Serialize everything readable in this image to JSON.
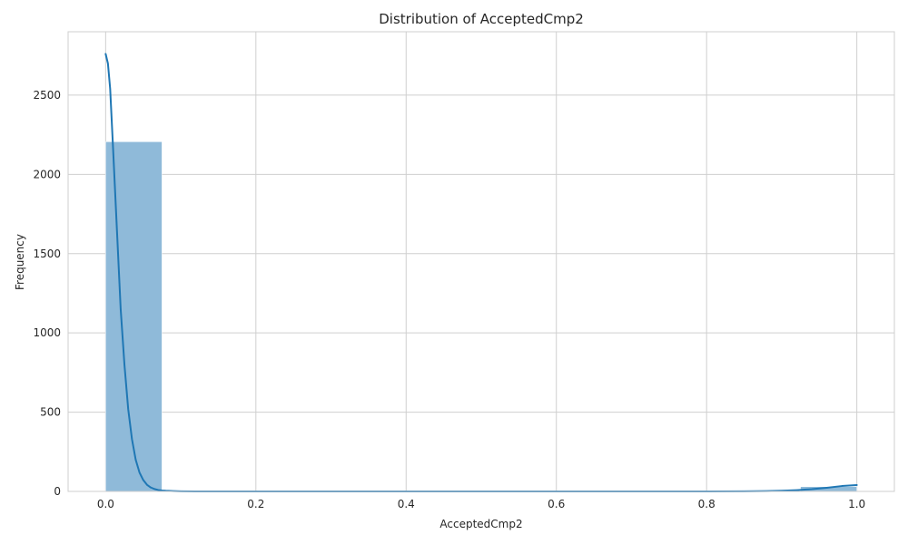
{
  "chart_data": {
    "type": "bar",
    "title": "Distribution of AcceptedCmp2",
    "xlabel": "AcceptedCmp2",
    "ylabel": "Frequency",
    "xlim": [
      -0.05,
      1.05
    ],
    "ylim": [
      0,
      2900
    ],
    "x_ticks": [
      0.0,
      0.2,
      0.4,
      0.6,
      0.8,
      1.0
    ],
    "x_tick_labels": [
      "0.0",
      "0.2",
      "0.4",
      "0.6",
      "0.8",
      "1.0"
    ],
    "y_ticks": [
      0,
      500,
      1000,
      1500,
      2000,
      2500
    ],
    "y_tick_labels": [
      "0",
      "500",
      "1000",
      "1500",
      "2000",
      "2500"
    ],
    "grid": true,
    "bar_color": "#8fbad9",
    "bar_edge_color": "#ffffff",
    "line_color": "#1f77b4",
    "bins": [
      {
        "x0": 0.0,
        "x1": 0.075,
        "count": 2206
      },
      {
        "x0": 0.925,
        "x1": 1.0,
        "count": 30
      }
    ],
    "kde": {
      "x": [
        0.0,
        0.003,
        0.006,
        0.01,
        0.015,
        0.02,
        0.025,
        0.03,
        0.035,
        0.04,
        0.045,
        0.05,
        0.055,
        0.06,
        0.065,
        0.07,
        0.075,
        0.08,
        0.09,
        0.1,
        0.12,
        0.15,
        0.2,
        0.3,
        0.4,
        0.5,
        0.6,
        0.7,
        0.8,
        0.85,
        0.88,
        0.9,
        0.92,
        0.94,
        0.96,
        0.98,
        1.0
      ],
      "y": [
        2760,
        2700,
        2540,
        2150,
        1650,
        1150,
        800,
        520,
        330,
        200,
        120,
        72,
        42,
        25,
        15,
        9,
        6,
        4,
        2,
        1,
        0,
        0,
        0,
        0,
        0,
        0,
        0,
        0,
        0,
        1,
        2,
        4,
        8,
        14,
        23,
        34,
        40
      ]
    }
  }
}
